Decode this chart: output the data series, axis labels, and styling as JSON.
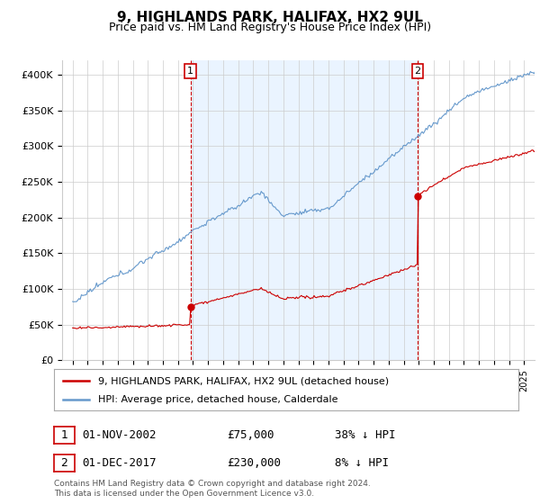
{
  "title": "9, HIGHLANDS PARK, HALIFAX, HX2 9UL",
  "subtitle": "Price paid vs. HM Land Registry's House Price Index (HPI)",
  "legend_label_red": "9, HIGHLANDS PARK, HALIFAX, HX2 9UL (detached house)",
  "legend_label_blue": "HPI: Average price, detached house, Calderdale",
  "annotation1_date": "01-NOV-2002",
  "annotation1_price": "£75,000",
  "annotation1_hpi": "38% ↓ HPI",
  "annotation2_date": "01-DEC-2017",
  "annotation2_price": "£230,000",
  "annotation2_hpi": "8% ↓ HPI",
  "footer": "Contains HM Land Registry data © Crown copyright and database right 2024.\nThis data is licensed under the Open Government Licence v3.0.",
  "red_color": "#cc0000",
  "blue_color": "#6699cc",
  "shade_color": "#ddeeff",
  "background_color": "#ffffff",
  "ylim": [
    0,
    420000
  ],
  "yticks": [
    0,
    50000,
    100000,
    150000,
    200000,
    250000,
    300000,
    350000,
    400000
  ]
}
